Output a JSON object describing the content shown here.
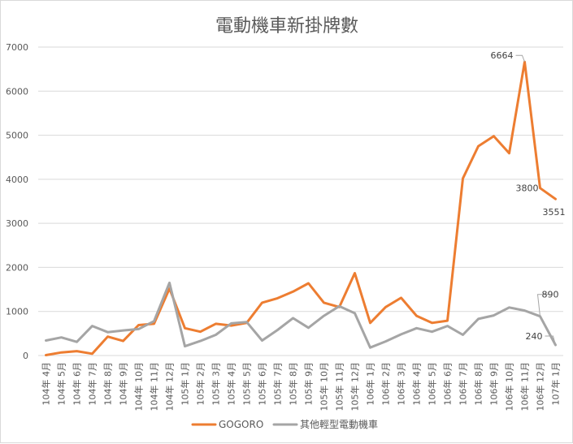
{
  "chart_data": {
    "type": "line",
    "title": "電動機車新掛牌數",
    "xlabel": "",
    "ylabel": "",
    "ylim": [
      0,
      7000
    ],
    "yticks": [
      0,
      1000,
      2000,
      3000,
      4000,
      5000,
      6000,
      7000
    ],
    "grid": true,
    "legend_position": "bottom",
    "categories": [
      "104年 4月",
      "104年 5月",
      "104年 6月",
      "104年 7月",
      "104年 8月",
      "104年 9月",
      "104年 10月",
      "104年 11月",
      "104年 12月",
      "105年 1月",
      "105年 2月",
      "105年 3月",
      "105年 4月",
      "105年 5月",
      "105年 6月",
      "105年 7月",
      "105年 8月",
      "105年 9月",
      "105年 10月",
      "105年 11月",
      "105年 12月",
      "106年 1月",
      "106年 2月",
      "106年 3月",
      "106年 4月",
      "106年 5月",
      "106年 6月",
      "106年 7月",
      "106年 8月",
      "106年 9月",
      "106年 10月",
      "106年 11月",
      "106年 12月",
      "107年 1月"
    ],
    "series": [
      {
        "name": "GOGORO",
        "color": "#ed7d31",
        "values": [
          10,
          70,
          100,
          40,
          430,
          330,
          690,
          720,
          1520,
          620,
          540,
          720,
          680,
          740,
          1200,
          1300,
          1450,
          1640,
          1200,
          1100,
          1870,
          740,
          1100,
          1310,
          900,
          740,
          790,
          4020,
          4750,
          4980,
          4590,
          6664,
          3800,
          3551
        ]
      },
      {
        "name": "其他輕型電動機車",
        "color": "#a5a5a5",
        "values": [
          340,
          410,
          310,
          670,
          530,
          570,
          600,
          780,
          1650,
          210,
          330,
          470,
          730,
          760,
          340,
          580,
          850,
          630,
          900,
          1120,
          960,
          180,
          320,
          480,
          620,
          540,
          670,
          470,
          830,
          910,
          1090,
          1020,
          890,
          240
        ]
      }
    ],
    "data_labels": [
      {
        "series": 0,
        "index": 31,
        "text": "6664"
      },
      {
        "series": 0,
        "index": 32,
        "text": "3800"
      },
      {
        "series": 0,
        "index": 33,
        "text": "3551"
      },
      {
        "series": 1,
        "index": 32,
        "text": "890"
      },
      {
        "series": 1,
        "index": 33,
        "text": "240"
      }
    ]
  }
}
